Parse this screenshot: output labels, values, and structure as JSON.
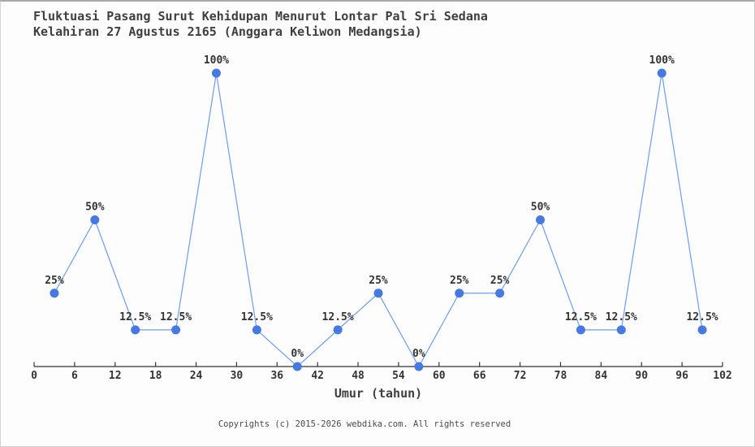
{
  "title": {
    "line1": "Fluktuasi Pasang Surut Kehidupan Menurut Lontar Pal Sri Sedana",
    "line2": "Kelahiran 27 Agustus 2165 (Anggara Keliwon Medangsia)"
  },
  "footer": {
    "text": "Copyrights (c) 2015-2026 webdika.com. All rights reserved"
  },
  "chart_data": {
    "type": "line",
    "title": "Fluktuasi Pasang Surut Kehidupan Menurut Lontar Pal Sri Sedana Kelahiran 27 Agustus 2165 (Anggara Keliwon Medangsia)",
    "xlabel": "Umur (tahun)",
    "ylabel": "",
    "x": [
      3,
      9,
      15,
      21,
      27,
      33,
      39,
      45,
      51,
      57,
      63,
      69,
      75,
      81,
      87,
      93,
      99
    ],
    "values": [
      25,
      50,
      12.5,
      12.5,
      100,
      12.5,
      0,
      12.5,
      25,
      0,
      25,
      25,
      50,
      12.5,
      12.5,
      100,
      12.5
    ],
    "point_labels": [
      "25%",
      "50%",
      "12.5%",
      "12.5%",
      "100%",
      "12.5%",
      "0%",
      "12.5%",
      "25%",
      "0%",
      "25%",
      "25%",
      "50%",
      "12.5%",
      "12.5%",
      "100%",
      "12.5%"
    ],
    "x_ticks": [
      0,
      6,
      12,
      18,
      24,
      30,
      36,
      42,
      48,
      54,
      60,
      66,
      72,
      78,
      84,
      90,
      96,
      102
    ],
    "xlim": [
      0,
      102
    ],
    "ylim": [
      0,
      100
    ],
    "grid": false,
    "legend": "none",
    "colors": {
      "line": "#6f9ceb",
      "marker": "#4679e1",
      "axis": "#333333",
      "label": "#333333",
      "tick_label": "#333333"
    }
  }
}
